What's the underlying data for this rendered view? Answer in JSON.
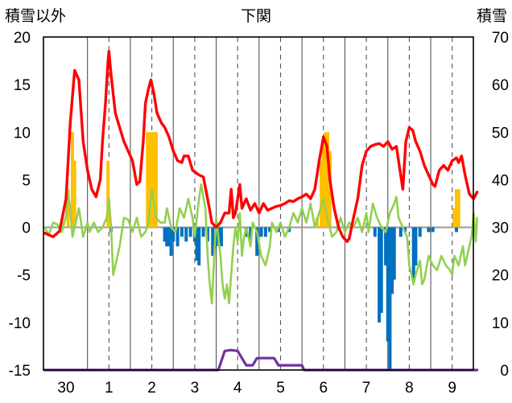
{
  "chart_data": {
    "type": "line",
    "title": "下関",
    "ylabel_left": "積雪以外",
    "ylabel_right": "積雪",
    "y_left": {
      "ticks": [
        "20",
        "15",
        "10",
        "5",
        "0",
        "-5",
        "-10",
        "-15"
      ],
      "range": [
        -15,
        20
      ]
    },
    "y_right": {
      "ticks": [
        "70",
        "60",
        "50",
        "40",
        "30",
        "20",
        "10",
        "0"
      ],
      "range": [
        0,
        70
      ]
    },
    "x_tick_labels": [
      "30",
      "1",
      "2",
      "3",
      "4",
      "5",
      "6",
      "7",
      "8",
      "9"
    ],
    "colors": {
      "temperature": "#ff0000",
      "wind": "#92d050",
      "precip_positive": "#ffc000",
      "precip_negative": "#0070c0",
      "snow": "#7030a0"
    },
    "series": [
      {
        "key": "temperature",
        "axis": "left",
        "points": [
          [
            -0.5,
            -0.6
          ],
          [
            -0.3,
            -1.0
          ],
          [
            -0.15,
            -0.4
          ],
          [
            0.0,
            3
          ],
          [
            0.1,
            11
          ],
          [
            0.2,
            16.5
          ],
          [
            0.3,
            15.5
          ],
          [
            0.4,
            9
          ],
          [
            0.5,
            6
          ],
          [
            0.6,
            4
          ],
          [
            0.7,
            3.2
          ],
          [
            0.8,
            5
          ],
          [
            0.85,
            9
          ],
          [
            0.92,
            13
          ],
          [
            0.98,
            17.5
          ],
          [
            1.0,
            18.5
          ],
          [
            1.05,
            16
          ],
          [
            1.15,
            12
          ],
          [
            1.25,
            10.5
          ],
          [
            1.35,
            9
          ],
          [
            1.45,
            8
          ],
          [
            1.55,
            7
          ],
          [
            1.65,
            4.5
          ],
          [
            1.72,
            4.8
          ],
          [
            1.8,
            9
          ],
          [
            1.85,
            13
          ],
          [
            1.92,
            14.5
          ],
          [
            1.98,
            15.5
          ],
          [
            2.05,
            14
          ],
          [
            2.12,
            12
          ],
          [
            2.22,
            11
          ],
          [
            2.3,
            10.5
          ],
          [
            2.4,
            9.5
          ],
          [
            2.5,
            8
          ],
          [
            2.6,
            7
          ],
          [
            2.7,
            6.8
          ],
          [
            2.75,
            7.5
          ],
          [
            2.85,
            7.5
          ],
          [
            2.95,
            6
          ],
          [
            3.1,
            5.5
          ],
          [
            3.2,
            5.3
          ],
          [
            3.3,
            3
          ],
          [
            3.4,
            0.5
          ],
          [
            3.5,
            0
          ],
          [
            3.6,
            0.5
          ],
          [
            3.7,
            1.5
          ],
          [
            3.8,
            1.5
          ],
          [
            3.85,
            4
          ],
          [
            3.9,
            1
          ],
          [
            3.95,
            1.5
          ],
          [
            4.05,
            4.5
          ],
          [
            4.1,
            2
          ],
          [
            4.2,
            3
          ],
          [
            4.3,
            1.8
          ],
          [
            4.4,
            2.5
          ],
          [
            4.5,
            1.5
          ],
          [
            4.6,
            2.5
          ],
          [
            4.7,
            1.8
          ],
          [
            4.8,
            2
          ],
          [
            4.9,
            2.2
          ],
          [
            5.0,
            2.3
          ],
          [
            5.1,
            2.5
          ],
          [
            5.2,
            2.8
          ],
          [
            5.3,
            2.7
          ],
          [
            5.4,
            3
          ],
          [
            5.5,
            3.2
          ],
          [
            5.6,
            3.5
          ],
          [
            5.7,
            3
          ],
          [
            5.8,
            4
          ],
          [
            5.9,
            7
          ],
          [
            6.0,
            9.5
          ],
          [
            6.08,
            8.5
          ],
          [
            6.15,
            5
          ],
          [
            6.25,
            2
          ],
          [
            6.35,
            0
          ],
          [
            6.45,
            -1
          ],
          [
            6.55,
            -1.5
          ],
          [
            6.6,
            -1.2
          ],
          [
            6.7,
            1
          ],
          [
            6.8,
            3
          ],
          [
            6.9,
            6.5
          ],
          [
            7.0,
            8
          ],
          [
            7.1,
            8.5
          ],
          [
            7.2,
            8.7
          ],
          [
            7.3,
            8.8
          ],
          [
            7.4,
            8.5
          ],
          [
            7.5,
            9
          ],
          [
            7.6,
            8.2
          ],
          [
            7.7,
            8.5
          ],
          [
            7.8,
            5.5
          ],
          [
            7.85,
            4
          ],
          [
            7.92,
            9
          ],
          [
            8.0,
            10.5
          ],
          [
            8.08,
            10.2
          ],
          [
            8.15,
            9
          ],
          [
            8.25,
            8
          ],
          [
            8.35,
            6.5
          ],
          [
            8.45,
            5.5
          ],
          [
            8.55,
            4.5
          ],
          [
            8.6,
            4.3
          ],
          [
            8.7,
            6
          ],
          [
            8.8,
            6.5
          ],
          [
            8.9,
            6
          ],
          [
            9.0,
            7
          ],
          [
            9.1,
            7.3
          ],
          [
            9.15,
            6.8
          ],
          [
            9.22,
            7.5
          ],
          [
            9.3,
            5.5
          ],
          [
            9.4,
            3.5
          ],
          [
            9.5,
            3
          ],
          [
            9.58,
            3.7
          ]
        ]
      },
      {
        "key": "wind",
        "axis": "left",
        "points": [
          [
            -0.5,
            0
          ],
          [
            -0.4,
            -0.8
          ],
          [
            -0.3,
            0.5
          ],
          [
            -0.2,
            0.3
          ],
          [
            -0.1,
            -0.5
          ],
          [
            0.0,
            1.2
          ],
          [
            0.05,
            3.5
          ],
          [
            0.1,
            2
          ],
          [
            0.15,
            -1
          ],
          [
            0.2,
            0
          ],
          [
            0.3,
            2
          ],
          [
            0.35,
            0.5
          ],
          [
            0.4,
            -1
          ],
          [
            0.5,
            0.5
          ],
          [
            0.55,
            -0.5
          ],
          [
            0.65,
            0.5
          ],
          [
            0.75,
            -0.5
          ],
          [
            0.85,
            0
          ],
          [
            0.95,
            1
          ],
          [
            1.0,
            3
          ],
          [
            1.05,
            0
          ],
          [
            1.1,
            -5
          ],
          [
            1.15,
            -4
          ],
          [
            1.25,
            -2
          ],
          [
            1.35,
            1
          ],
          [
            1.45,
            0.8
          ],
          [
            1.55,
            -0.5
          ],
          [
            1.65,
            1
          ],
          [
            1.75,
            -1
          ],
          [
            1.85,
            -0.5
          ],
          [
            1.92,
            0.5
          ],
          [
            2.0,
            4
          ],
          [
            2.1,
            1
          ],
          [
            2.2,
            0.5
          ],
          [
            2.3,
            0.5
          ],
          [
            2.35,
            2
          ],
          [
            2.45,
            0
          ],
          [
            2.55,
            -0.5
          ],
          [
            2.65,
            2
          ],
          [
            2.75,
            1
          ],
          [
            2.85,
            3
          ],
          [
            2.95,
            1
          ],
          [
            3.0,
            -1
          ],
          [
            3.1,
            3
          ],
          [
            3.15,
            4.5
          ],
          [
            3.25,
            2
          ],
          [
            3.3,
            -3
          ],
          [
            3.35,
            -6
          ],
          [
            3.4,
            -8
          ],
          [
            3.45,
            -3.5
          ],
          [
            3.5,
            1
          ],
          [
            3.55,
            -1
          ],
          [
            3.6,
            -3
          ],
          [
            3.65,
            -6
          ],
          [
            3.7,
            -7.5
          ],
          [
            3.75,
            -6
          ],
          [
            3.8,
            -8
          ],
          [
            3.85,
            -5
          ],
          [
            3.9,
            -2
          ],
          [
            3.95,
            0
          ],
          [
            4.0,
            -1.5
          ],
          [
            4.05,
            1.5
          ],
          [
            4.1,
            -3
          ],
          [
            4.15,
            -1
          ],
          [
            4.2,
            0
          ],
          [
            4.3,
            -2
          ],
          [
            4.35,
            0.5
          ],
          [
            4.45,
            -0.5
          ],
          [
            4.55,
            -3
          ],
          [
            4.65,
            -4
          ],
          [
            4.75,
            -2
          ],
          [
            4.8,
            0.5
          ],
          [
            4.9,
            -0.5
          ],
          [
            5.0,
            0.5
          ],
          [
            5.1,
            -1
          ],
          [
            5.2,
            0
          ],
          [
            5.3,
            1.5
          ],
          [
            5.4,
            0.5
          ],
          [
            5.5,
            2
          ],
          [
            5.6,
            0.5
          ],
          [
            5.7,
            2.5
          ],
          [
            5.8,
            0
          ],
          [
            5.9,
            1.5
          ],
          [
            6.0,
            3
          ],
          [
            6.1,
            0.8
          ],
          [
            6.2,
            -1
          ],
          [
            6.3,
            -0.5
          ],
          [
            6.4,
            1
          ],
          [
            6.5,
            -0.5
          ],
          [
            6.6,
            0.5
          ],
          [
            6.7,
            0
          ],
          [
            6.8,
            1
          ],
          [
            6.9,
            -0.5
          ],
          [
            7.0,
            1.5
          ],
          [
            7.05,
            -0.5
          ],
          [
            7.15,
            2.5
          ],
          [
            7.25,
            1
          ],
          [
            7.35,
            0
          ],
          [
            7.45,
            -0.5
          ],
          [
            7.55,
            1.5
          ],
          [
            7.65,
            2.5
          ],
          [
            7.7,
            3.2
          ],
          [
            7.75,
            1
          ],
          [
            7.85,
            0
          ],
          [
            7.95,
            -1
          ],
          [
            8.0,
            -4
          ],
          [
            8.05,
            -5
          ],
          [
            8.1,
            -6
          ],
          [
            8.15,
            -5
          ],
          [
            8.25,
            -3.5
          ],
          [
            8.3,
            -6
          ],
          [
            8.35,
            -5.5
          ],
          [
            8.45,
            -3
          ],
          [
            8.55,
            -4
          ],
          [
            8.65,
            -4.5
          ],
          [
            8.75,
            -3
          ],
          [
            8.85,
            -4
          ],
          [
            8.95,
            -4.5
          ],
          [
            9.0,
            -5
          ],
          [
            9.05,
            -3
          ],
          [
            9.15,
            -4
          ],
          [
            9.25,
            -2
          ],
          [
            9.3,
            -4
          ],
          [
            9.35,
            -3
          ],
          [
            9.45,
            -1
          ],
          [
            9.5,
            1.5
          ],
          [
            9.55,
            -1.5
          ],
          [
            9.58,
            1
          ]
        ]
      },
      {
        "key": "snow",
        "axis": "right",
        "points": [
          [
            -0.5,
            0
          ],
          [
            3.55,
            0
          ],
          [
            3.7,
            4
          ],
          [
            3.85,
            4.2
          ],
          [
            4.0,
            4
          ],
          [
            4.1,
            2.5
          ],
          [
            4.2,
            1
          ],
          [
            4.35,
            1
          ],
          [
            4.45,
            2.5
          ],
          [
            4.85,
            2.5
          ],
          [
            4.95,
            1
          ],
          [
            5.5,
            1
          ],
          [
            5.55,
            0
          ],
          [
            9.58,
            0
          ]
        ]
      },
      {
        "key": "precip_positive",
        "axis": "left",
        "bars": [
          [
            0.05,
            4
          ],
          [
            0.15,
            10
          ],
          [
            0.2,
            7
          ],
          [
            0.98,
            7
          ],
          [
            1.9,
            10
          ],
          [
            1.95,
            10
          ],
          [
            2.0,
            10
          ],
          [
            2.05,
            10
          ],
          [
            2.1,
            10
          ],
          [
            5.8,
            0.5
          ],
          [
            5.85,
            1
          ],
          [
            5.95,
            7
          ],
          [
            6.0,
            9
          ],
          [
            6.05,
            10
          ],
          [
            6.1,
            10
          ],
          [
            6.15,
            8
          ],
          [
            9.05,
            2
          ],
          [
            9.1,
            4
          ],
          [
            9.15,
            4
          ]
        ]
      },
      {
        "key": "precip_negative",
        "axis": "left",
        "bars": [
          [
            1.05,
            -0.5
          ],
          [
            2.3,
            -1.5
          ],
          [
            2.35,
            -2
          ],
          [
            2.4,
            -2
          ],
          [
            2.45,
            -3
          ],
          [
            2.5,
            -1.5
          ],
          [
            2.6,
            -2
          ],
          [
            2.7,
            -1
          ],
          [
            2.8,
            -1.5
          ],
          [
            2.9,
            -1
          ],
          [
            3.0,
            -1.5
          ],
          [
            3.05,
            -3.5
          ],
          [
            3.1,
            -4
          ],
          [
            3.2,
            -1
          ],
          [
            3.3,
            -1.5
          ],
          [
            3.42,
            -3
          ],
          [
            3.5,
            -2
          ],
          [
            3.55,
            -1.5
          ],
          [
            3.62,
            -2
          ],
          [
            4.2,
            -1
          ],
          [
            4.3,
            -1.5
          ],
          [
            4.45,
            -3
          ],
          [
            4.55,
            -1
          ],
          [
            4.65,
            -1
          ],
          [
            4.75,
            -0.5
          ],
          [
            4.95,
            -0.5
          ],
          [
            5.2,
            -0.5
          ],
          [
            7.2,
            -1
          ],
          [
            7.3,
            -10
          ],
          [
            7.35,
            -9
          ],
          [
            7.45,
            -4
          ],
          [
            7.5,
            -12
          ],
          [
            7.55,
            -15
          ],
          [
            7.6,
            -7
          ],
          [
            7.65,
            -5.5
          ],
          [
            7.8,
            -1
          ],
          [
            7.9,
            -0.5
          ],
          [
            8.1,
            -5.5
          ],
          [
            8.15,
            -4
          ],
          [
            8.25,
            -1
          ],
          [
            8.45,
            -0.5
          ],
          [
            8.55,
            -0.5
          ],
          [
            9.1,
            -0.5
          ]
        ]
      }
    ]
  }
}
